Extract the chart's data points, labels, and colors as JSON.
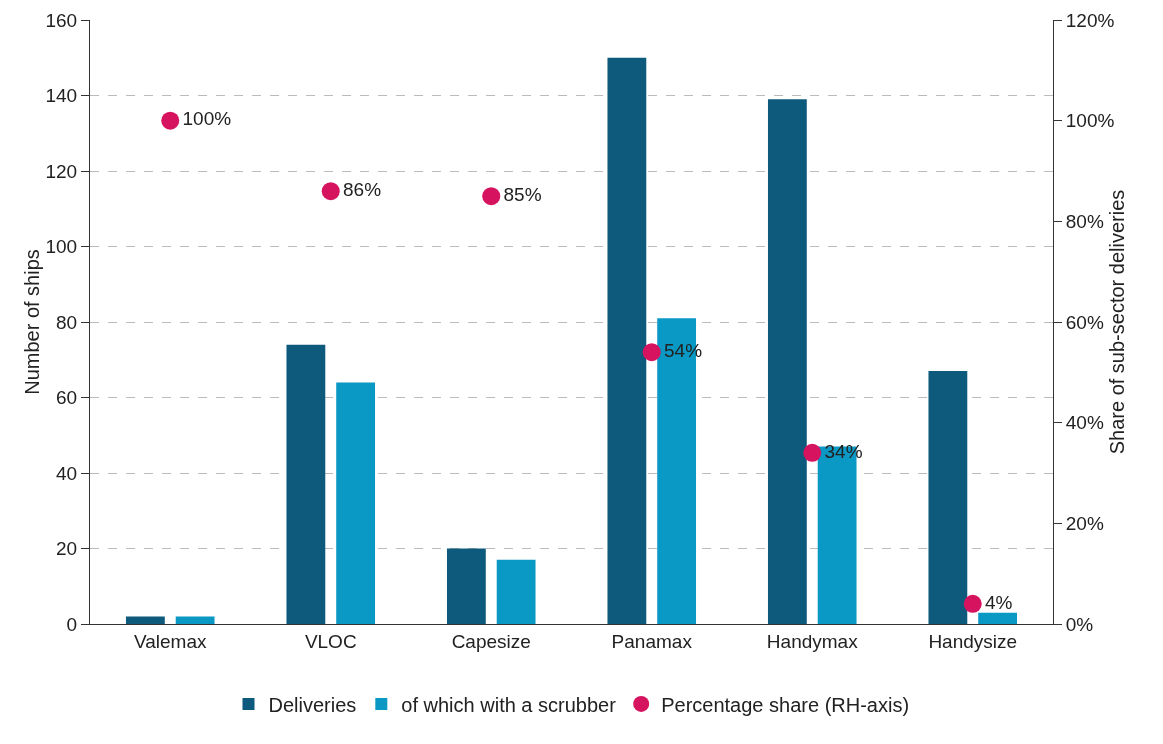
{
  "chart_data": {
    "type": "bar",
    "ylabel": "Number of ships",
    "y2label": "Share of sub-sector deliveries",
    "categories": [
      "Valemax",
      "VLOC",
      "Capesize",
      "Panamax",
      "Handymax",
      "Handysize"
    ],
    "series": [
      {
        "name": "Deliveries",
        "color": "#0d5a7c",
        "values": [
          2,
          74,
          20,
          150,
          139,
          67
        ]
      },
      {
        "name": "of which with a scrubber",
        "color": "#0a98c4",
        "values": [
          2,
          64,
          17,
          81,
          47,
          3
        ]
      },
      {
        "name": "Percentage share (RH-axis)",
        "type": "scatter",
        "axis": "y2",
        "color": "#d6135f",
        "marker": "circle",
        "values": [
          100,
          86,
          85,
          54,
          34,
          4
        ],
        "value_labels": [
          "100%",
          "86%",
          "85%",
          "54%",
          "34%",
          "4%"
        ]
      }
    ],
    "ylim": [
      0,
      160
    ],
    "yticks": [
      0,
      20,
      40,
      60,
      80,
      100,
      120,
      140,
      160
    ],
    "y2lim": [
      0,
      120
    ],
    "y2ticks": [
      {
        "value": 0,
        "label": "0%"
      },
      {
        "value": 20,
        "label": "20%"
      },
      {
        "value": 40,
        "label": "40%"
      },
      {
        "value": 60,
        "label": "60%"
      },
      {
        "value": 80,
        "label": "80%"
      },
      {
        "value": 100,
        "label": "100%"
      },
      {
        "value": 120,
        "label": "120%"
      }
    ],
    "grid": "y",
    "legend": "bottom"
  }
}
